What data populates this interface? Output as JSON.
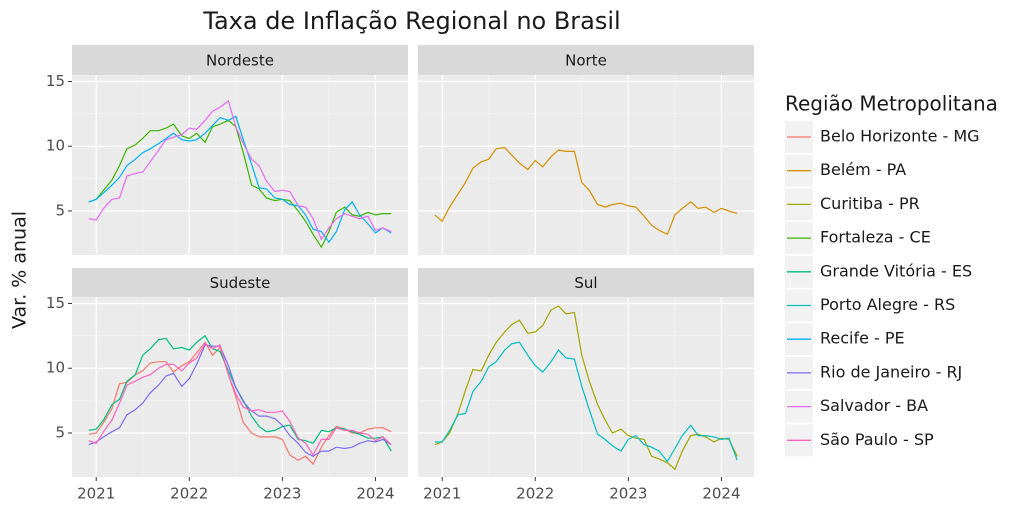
{
  "chart_data": {
    "type": "line",
    "title": "Taxa de Inflação Regional no Brasil",
    "y_label": "Var. % anual",
    "legend_title": "Região Metropolitana",
    "legend_position": "right",
    "grid": true,
    "facets": [
      "Nordeste",
      "Norte",
      "Sudeste",
      "Sul"
    ],
    "x": [
      2020.92,
      2021,
      2021.08,
      2021.17,
      2021.25,
      2021.33,
      2021.42,
      2021.5,
      2021.58,
      2021.67,
      2021.75,
      2021.83,
      2021.92,
      2022,
      2022.08,
      2022.17,
      2022.25,
      2022.33,
      2022.42,
      2022.5,
      2022.58,
      2022.67,
      2022.75,
      2022.83,
      2022.92,
      2023,
      2023.08,
      2023.17,
      2023.25,
      2023.33,
      2023.42,
      2023.5,
      2023.58,
      2023.67,
      2023.75,
      2023.83,
      2023.92,
      2024,
      2024.08,
      2024.17
    ],
    "xlim": [
      2020.74,
      2024.35
    ],
    "xticks": [
      2021,
      2022,
      2023,
      2024
    ],
    "ylim": [
      1.6,
      15.5
    ],
    "yticks": [
      5,
      10,
      15
    ],
    "series": [
      {
        "name": "Belo Horizonte - MG",
        "color": "#F8766D",
        "facet": "Sudeste",
        "values": [
          4.9,
          5.0,
          5.8,
          6.9,
          8.8,
          8.9,
          9.5,
          9.8,
          10.4,
          10.5,
          10.5,
          9.7,
          10.2,
          10.5,
          11.2,
          12.0,
          11.0,
          11.6,
          9.5,
          7.8,
          5.8,
          5.0,
          4.7,
          4.7,
          4.7,
          4.5,
          3.3,
          2.9,
          3.2,
          2.6,
          3.9,
          4.8,
          5.5,
          5.3,
          5.0,
          5.0,
          5.3,
          5.4,
          5.4,
          5.1
        ]
      },
      {
        "name": "Belém - PA",
        "color": "#D89000",
        "facet": "Norte",
        "values": [
          4.7,
          4.2,
          5.3,
          6.3,
          7.2,
          8.3,
          8.8,
          9.0,
          9.8,
          9.9,
          9.3,
          8.7,
          8.2,
          8.9,
          8.4,
          9.2,
          9.7,
          9.6,
          9.6,
          7.2,
          6.6,
          5.5,
          5.3,
          5.5,
          5.6,
          5.4,
          5.3,
          4.6,
          3.9,
          3.5,
          3.2,
          4.7,
          5.2,
          5.7,
          5.2,
          5.3,
          4.9,
          5.2,
          5.0,
          4.8
        ]
      },
      {
        "name": "Curitiba - PR",
        "color": "#A3A500",
        "facet": "Sul",
        "values": [
          4.1,
          4.3,
          5.0,
          6.5,
          8.3,
          9.9,
          9.8,
          11.0,
          12.0,
          12.8,
          13.4,
          13.7,
          12.7,
          12.8,
          13.3,
          14.5,
          14.8,
          14.2,
          14.3,
          11.0,
          9.0,
          7.2,
          6.0,
          5.0,
          5.3,
          4.8,
          4.6,
          4.5,
          3.2,
          3.0,
          2.7,
          2.2,
          3.6,
          4.8,
          4.9,
          4.7,
          4.3,
          4.6,
          4.5,
          3.2
        ]
      },
      {
        "name": "Fortaleza - CE",
        "color": "#39B600",
        "facet": "Nordeste",
        "values": [
          5.7,
          5.9,
          6.6,
          7.4,
          8.5,
          9.8,
          10.1,
          10.6,
          11.2,
          11.2,
          11.4,
          11.7,
          10.8,
          10.6,
          11.0,
          10.3,
          11.5,
          11.7,
          12.0,
          11.5,
          9.5,
          7.0,
          6.7,
          6.0,
          5.8,
          5.9,
          5.8,
          5.0,
          4.2,
          3.2,
          2.2,
          3.4,
          4.9,
          5.3,
          4.7,
          4.6,
          4.9,
          4.7,
          4.8,
          4.8
        ]
      },
      {
        "name": "Grande Vitória - ES",
        "color": "#00BF7D",
        "facet": "Sudeste",
        "values": [
          5.2,
          5.3,
          6.0,
          7.2,
          7.6,
          9.0,
          9.5,
          11.0,
          11.5,
          12.2,
          12.3,
          11.5,
          11.6,
          11.4,
          12.0,
          12.5,
          11.5,
          11.3,
          9.8,
          8.5,
          7.5,
          6.3,
          5.5,
          5.1,
          5.2,
          5.5,
          5.6,
          4.5,
          4.4,
          4.2,
          5.2,
          5.1,
          5.4,
          5.3,
          5.1,
          4.9,
          4.6,
          4.6,
          4.7,
          3.6
        ]
      },
      {
        "name": "Porto Alegre - RS",
        "color": "#00BFC4",
        "facet": "Sul",
        "values": [
          4.3,
          4.3,
          5.2,
          6.4,
          6.5,
          8.2,
          9.0,
          10.1,
          10.5,
          11.4,
          11.9,
          12.0,
          11.0,
          10.2,
          9.7,
          10.5,
          11.4,
          10.8,
          10.7,
          8.6,
          6.8,
          4.9,
          4.5,
          4.0,
          3.6,
          4.5,
          4.8,
          4.1,
          3.9,
          3.6,
          2.8,
          3.8,
          4.8,
          5.6,
          4.8,
          4.8,
          4.7,
          4.5,
          4.6,
          2.9
        ]
      },
      {
        "name": "Recife - PE",
        "color": "#00B0F6",
        "facet": "Nordeste",
        "values": [
          5.7,
          5.9,
          6.4,
          7.0,
          7.6,
          8.5,
          9.0,
          9.5,
          9.8,
          10.2,
          10.6,
          11.0,
          10.5,
          10.4,
          10.5,
          11.0,
          11.6,
          12.2,
          12.0,
          12.3,
          10.5,
          8.6,
          6.8,
          6.7,
          6.0,
          5.9,
          5.5,
          5.4,
          4.7,
          3.6,
          3.4,
          2.6,
          3.4,
          5.1,
          5.7,
          4.7,
          4.0,
          3.3,
          3.7,
          3.3
        ]
      },
      {
        "name": "Rio de Janeiro - RJ",
        "color": "#7B6FF0",
        "facet": "Sudeste",
        "values": [
          4.1,
          4.3,
          4.7,
          5.1,
          5.4,
          6.4,
          6.8,
          7.3,
          8.1,
          8.7,
          9.4,
          9.6,
          8.6,
          9.2,
          10.3,
          11.8,
          11.7,
          11.7,
          10.2,
          8.5,
          7.4,
          6.7,
          6.3,
          6.3,
          6.1,
          5.6,
          4.8,
          4.2,
          3.5,
          3.2,
          3.6,
          3.6,
          3.9,
          3.8,
          3.9,
          4.2,
          4.4,
          4.3,
          4.5,
          4.1
        ]
      },
      {
        "name": "Salvador - BA",
        "color": "#E76BF3",
        "facet": "Nordeste",
        "values": [
          4.4,
          4.3,
          5.2,
          5.9,
          6.0,
          7.7,
          7.9,
          8.0,
          8.8,
          9.7,
          10.5,
          10.7,
          10.9,
          11.4,
          11.3,
          12.0,
          12.7,
          13.0,
          13.5,
          11.5,
          10.2,
          9.0,
          8.5,
          7.3,
          6.5,
          6.6,
          6.5,
          5.4,
          5.3,
          4.4,
          2.8,
          3.7,
          4.4,
          4.8,
          4.6,
          4.4,
          4.6,
          3.5,
          3.7,
          3.4
        ]
      },
      {
        "name": "São Paulo - SP",
        "color": "#FF62BC",
        "facet": "Sudeste",
        "values": [
          4.4,
          4.2,
          5.1,
          6.0,
          7.3,
          8.7,
          9.0,
          9.3,
          9.5,
          10.0,
          10.3,
          10.3,
          9.8,
          10.4,
          10.8,
          11.9,
          11.5,
          11.8,
          9.5,
          8.0,
          7.0,
          6.7,
          6.8,
          6.6,
          6.6,
          6.7,
          5.9,
          4.6,
          4.2,
          3.3,
          4.5,
          4.5,
          5.4,
          5.2,
          5.2,
          5.0,
          4.9,
          4.4,
          4.7,
          4.1
        ]
      }
    ]
  }
}
